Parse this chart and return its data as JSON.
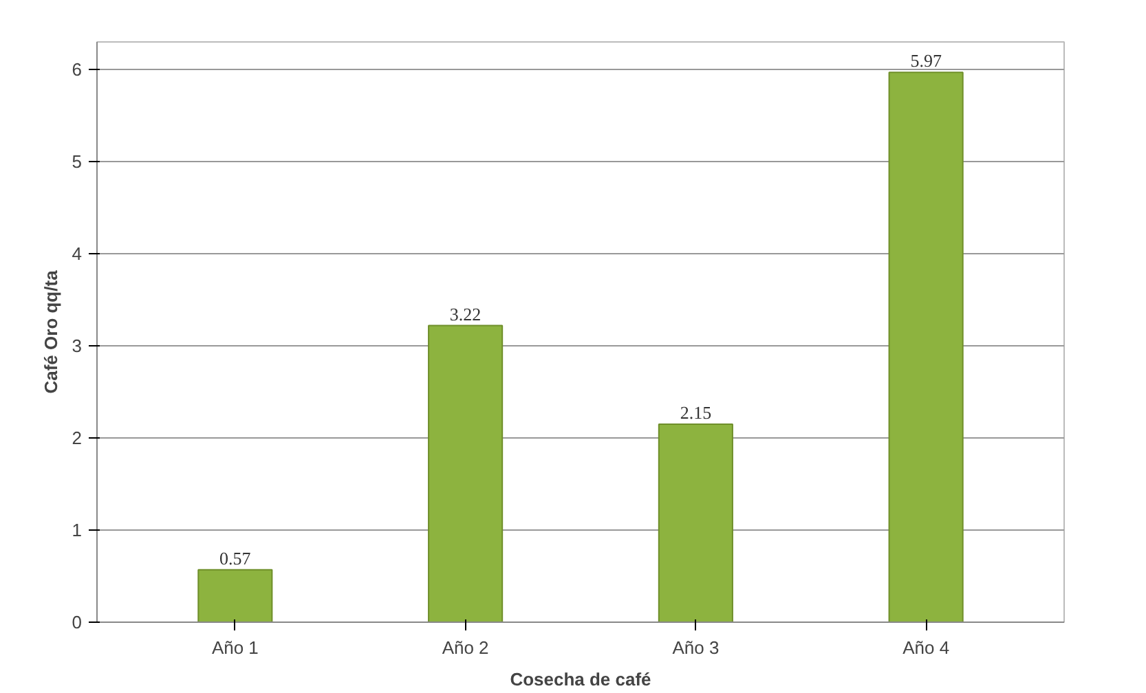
{
  "chart_data": {
    "type": "bar",
    "xlabel": "Cosecha de café",
    "ylabel": "Café Oro qq/ta",
    "categories": [
      "Año 1",
      "Año 2",
      "Año 3",
      "Año 4"
    ],
    "values": [
      0.57,
      3.22,
      2.15,
      5.97
    ],
    "color": "#8db33f",
    "ylim": [
      0,
      6.3
    ],
    "yticks": [
      0,
      1,
      2,
      3,
      4,
      5,
      6
    ],
    "grid": "y",
    "data_labels": true
  }
}
